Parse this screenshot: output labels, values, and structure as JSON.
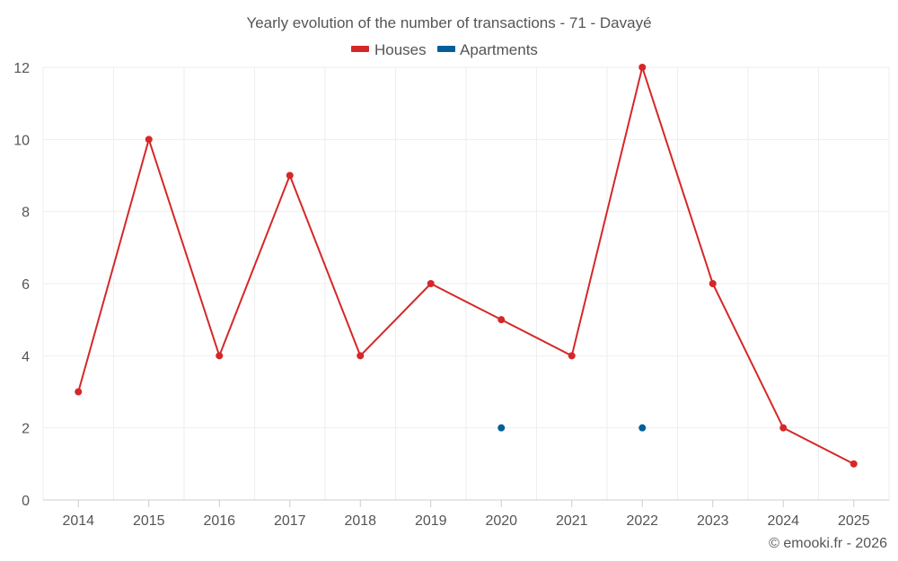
{
  "chart_data": {
    "type": "line",
    "title": "Yearly evolution of the number of transactions - 71 - Davayé",
    "categories": [
      "2014",
      "2015",
      "2016",
      "2017",
      "2018",
      "2019",
      "2020",
      "2021",
      "2022",
      "2023",
      "2024",
      "2025"
    ],
    "series": [
      {
        "name": "Houses",
        "color": "#d62728",
        "values": [
          3,
          10,
          4,
          9,
          4,
          6,
          5,
          4,
          12,
          6,
          2,
          1
        ]
      },
      {
        "name": "Apartments",
        "color": "#005f99",
        "values": [
          null,
          null,
          null,
          null,
          null,
          null,
          2,
          null,
          2,
          null,
          null,
          null
        ]
      }
    ],
    "ylim": [
      0,
      12
    ],
    "yticks": [
      0,
      2,
      4,
      6,
      8,
      10,
      12
    ],
    "xlabel": "",
    "ylabel": "",
    "grid": true,
    "legend_position": "top-center"
  },
  "credit": "© emooki.fr - 2026"
}
